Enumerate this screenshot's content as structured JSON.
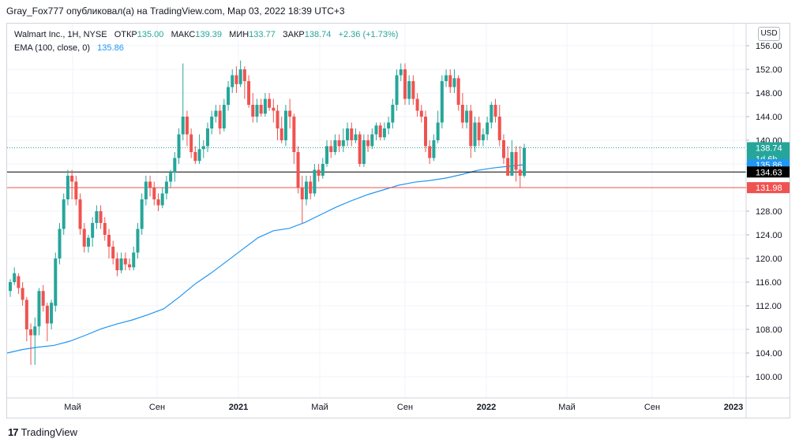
{
  "header": {
    "text": "Gray_Fox777 опубликовал(а) на TradingView.com, Мар 03, 2022 18:39 UTC+3"
  },
  "legend": {
    "symbol": "Walmart Inc., 1H, NYSE",
    "open_label": "ОТКР",
    "open_value": "135.00",
    "high_label": "МАКС",
    "high_value": "139.39",
    "low_label": "МИН",
    "low_value": "133.77",
    "close_label": "ЗАКР",
    "close_value": "138.74",
    "change": "+2.36 (+1.73%)",
    "ema_label": "EMA (100, close, 0)",
    "ema_value": "135.86"
  },
  "currency_button": "USD",
  "footer": {
    "logo": "17",
    "brand": "TradingView"
  },
  "colors": {
    "up": "#26a69a",
    "down": "#ef5350",
    "ema": "#2196f3",
    "support_line": "#ef5350",
    "resistance_line": "#000000",
    "grid": "#f0f3fa"
  },
  "chart_data": {
    "type": "candlestick",
    "y_ticks": [
      "156.00",
      "152.00",
      "148.00",
      "144.00",
      "140.00",
      "136.00",
      "132.00",
      "128.00",
      "124.00",
      "120.00",
      "116.00",
      "112.00",
      "108.00",
      "104.00",
      "100.00"
    ],
    "y_range": [
      96.5,
      158
    ],
    "x_ticks": [
      "Май",
      "Сен",
      "2021",
      "Май",
      "Сен",
      "2022",
      "Май",
      "Сен",
      "2023"
    ],
    "price_labels": [
      {
        "value": 138.74,
        "text": "138.74",
        "sub": "1d 6h",
        "color": "#26a69a"
      },
      {
        "value": 135.86,
        "text": "135.86",
        "color": "#2196f3"
      },
      {
        "value": 134.63,
        "text": "134.63",
        "color": "#000000"
      },
      {
        "value": 131.98,
        "text": "131.98",
        "color": "#ef5350"
      }
    ],
    "horizontal_lines": [
      {
        "value": 134.63,
        "color": "#000000"
      },
      {
        "value": 131.98,
        "color": "#ef5350"
      }
    ],
    "last_price_line": 138.74,
    "ema_series": [
      104,
      104.6,
      105,
      105.3,
      106,
      107,
      108.1,
      108.9,
      109.6,
      110.5,
      111.5,
      113.5,
      115.7,
      117.5,
      119.5,
      121.5,
      123.5,
      124.7,
      125.1,
      126.1,
      127.4,
      128.7,
      129.8,
      130.8,
      131.6,
      132.4,
      132.9,
      133.2,
      133.6,
      134.2,
      134.9,
      135.3,
      135.6,
      135.86
    ],
    "candles": [
      [
        114.5,
        116,
        113.5,
        116.5
      ],
      [
        116,
        117.5,
        115.5,
        118.5
      ],
      [
        117,
        115,
        114,
        117.5
      ],
      [
        115,
        113,
        112,
        116
      ],
      [
        113,
        108,
        106,
        113.5
      ],
      [
        108,
        107,
        102,
        109
      ],
      [
        107,
        108.5,
        102,
        110
      ],
      [
        108.5,
        114.5,
        107,
        115
      ],
      [
        114.5,
        112,
        111,
        115.5
      ],
      [
        112,
        109,
        106,
        112.5
      ],
      [
        109,
        112.5,
        108,
        113
      ],
      [
        112,
        120,
        111,
        121
      ],
      [
        120,
        125,
        119,
        126
      ],
      [
        125,
        130,
        124,
        131
      ],
      [
        130,
        134,
        129,
        135
      ],
      [
        134,
        133,
        130,
        135
      ],
      [
        133,
        130,
        129,
        134
      ],
      [
        130,
        125,
        124,
        131
      ],
      [
        125,
        122,
        121,
        126
      ],
      [
        122,
        123.5,
        121,
        124
      ],
      [
        123.5,
        126,
        122,
        127
      ],
      [
        126,
        128,
        125,
        129
      ],
      [
        128,
        126,
        125,
        129
      ],
      [
        126,
        124,
        123,
        127
      ],
      [
        124,
        122,
        120,
        125
      ],
      [
        122,
        120,
        119,
        123
      ],
      [
        120,
        118,
        117,
        121
      ],
      [
        118,
        120,
        117.5,
        121
      ],
      [
        120,
        119,
        118,
        121
      ],
      [
        119,
        118.5,
        118,
        120
      ],
      [
        118.5,
        121,
        118,
        122
      ],
      [
        121,
        125,
        120,
        126
      ],
      [
        125,
        130,
        124,
        131
      ],
      [
        130,
        133,
        129,
        134
      ],
      [
        133,
        132,
        130.5,
        134
      ],
      [
        132,
        130,
        129,
        133
      ],
      [
        130,
        129,
        128,
        131
      ],
      [
        129,
        131,
        128.5,
        132
      ],
      [
        131,
        133,
        130,
        134
      ],
      [
        133,
        134.5,
        132,
        135
      ],
      [
        134.5,
        137,
        133,
        138
      ],
      [
        137,
        141,
        136,
        142
      ],
      [
        141,
        144,
        140,
        153
      ],
      [
        144,
        141,
        139,
        145
      ],
      [
        141,
        138,
        137,
        142
      ],
      [
        138,
        136.5,
        136,
        139
      ],
      [
        136.5,
        138.5,
        136,
        141
      ],
      [
        138.5,
        139,
        137,
        140
      ],
      [
        139,
        142,
        138,
        143
      ],
      [
        142,
        144,
        141,
        145
      ],
      [
        144,
        145,
        143,
        146
      ],
      [
        145,
        142,
        141,
        146
      ],
      [
        142,
        146,
        141.5,
        147
      ],
      [
        146,
        149,
        145,
        150
      ],
      [
        149,
        151,
        148,
        152
      ],
      [
        151,
        149.5,
        148,
        152.5
      ],
      [
        149.5,
        152,
        149,
        153.5
      ],
      [
        152,
        150,
        147,
        152.5
      ],
      [
        150,
        146,
        145.5,
        151
      ],
      [
        146,
        144,
        143,
        148
      ],
      [
        144,
        146,
        143,
        147
      ],
      [
        146,
        144.5,
        144,
        147
      ],
      [
        144.5,
        147,
        144,
        148
      ],
      [
        147,
        145.5,
        145,
        148
      ],
      [
        145.5,
        145,
        143,
        147
      ],
      [
        145,
        142,
        140,
        146
      ],
      [
        142,
        140,
        139.5,
        144
      ],
      [
        140,
        145,
        139,
        146
      ],
      [
        145,
        144,
        142,
        147
      ],
      [
        144,
        138,
        136,
        144.5
      ],
      [
        138,
        132,
        131,
        139
      ],
      [
        132,
        130,
        126,
        134
      ],
      [
        130,
        133,
        129,
        134
      ],
      [
        133,
        131,
        130,
        134
      ],
      [
        131,
        135,
        130.5,
        136
      ],
      [
        135,
        134,
        133,
        136
      ],
      [
        134,
        136,
        133.5,
        137
      ],
      [
        136,
        139,
        135.5,
        140
      ],
      [
        139,
        138,
        137,
        140
      ],
      [
        138,
        140,
        137.5,
        141
      ],
      [
        140,
        139,
        138,
        141
      ],
      [
        139,
        140,
        138,
        142
      ],
      [
        140,
        142,
        139,
        143
      ],
      [
        142,
        140,
        139,
        143
      ],
      [
        140,
        141,
        139.5,
        142
      ],
      [
        141,
        136,
        135.5,
        141.5
      ],
      [
        136,
        140,
        135.5,
        141
      ],
      [
        140,
        139,
        138,
        141
      ],
      [
        139,
        141,
        138.5,
        142
      ],
      [
        141,
        142.5,
        140,
        143
      ],
      [
        142.5,
        140.5,
        140,
        143
      ],
      [
        140.5,
        142,
        140,
        143
      ],
      [
        142,
        143,
        141,
        144
      ],
      [
        143,
        146,
        142,
        147
      ],
      [
        146,
        151,
        145,
        152
      ],
      [
        151,
        152,
        150,
        153
      ],
      [
        152,
        147,
        146,
        153
      ],
      [
        147,
        150,
        146,
        151
      ],
      [
        150,
        147,
        146,
        151
      ],
      [
        147,
        145,
        144,
        148
      ],
      [
        145,
        144,
        143,
        146
      ],
      [
        144,
        139,
        138,
        145
      ],
      [
        139,
        137,
        136,
        140
      ],
      [
        137,
        140,
        136.5,
        141
      ],
      [
        140,
        143,
        139.5,
        145
      ],
      [
        143,
        150,
        142,
        151
      ],
      [
        150,
        151,
        149,
        152
      ],
      [
        151,
        149,
        148,
        152
      ],
      [
        149,
        150.5,
        148,
        152
      ],
      [
        150.5,
        146,
        145,
        151
      ],
      [
        146,
        143,
        142,
        148
      ],
      [
        143,
        145,
        142,
        146
      ],
      [
        145,
        139,
        137,
        146
      ],
      [
        139,
        143,
        138,
        144
      ],
      [
        143,
        140,
        139,
        144
      ],
      [
        140,
        141,
        139,
        142
      ],
      [
        141,
        143,
        140,
        144
      ],
      [
        143,
        146,
        142,
        146.5
      ],
      [
        146,
        144,
        143,
        147
      ],
      [
        144,
        140,
        139,
        146
      ],
      [
        140,
        137,
        136,
        141
      ],
      [
        137,
        134,
        134,
        139
      ],
      [
        134,
        138,
        134,
        140
      ],
      [
        138,
        135,
        133,
        139
      ],
      [
        135,
        134,
        132,
        139
      ],
      [
        134,
        138.7,
        133.7,
        139.4
      ]
    ]
  }
}
